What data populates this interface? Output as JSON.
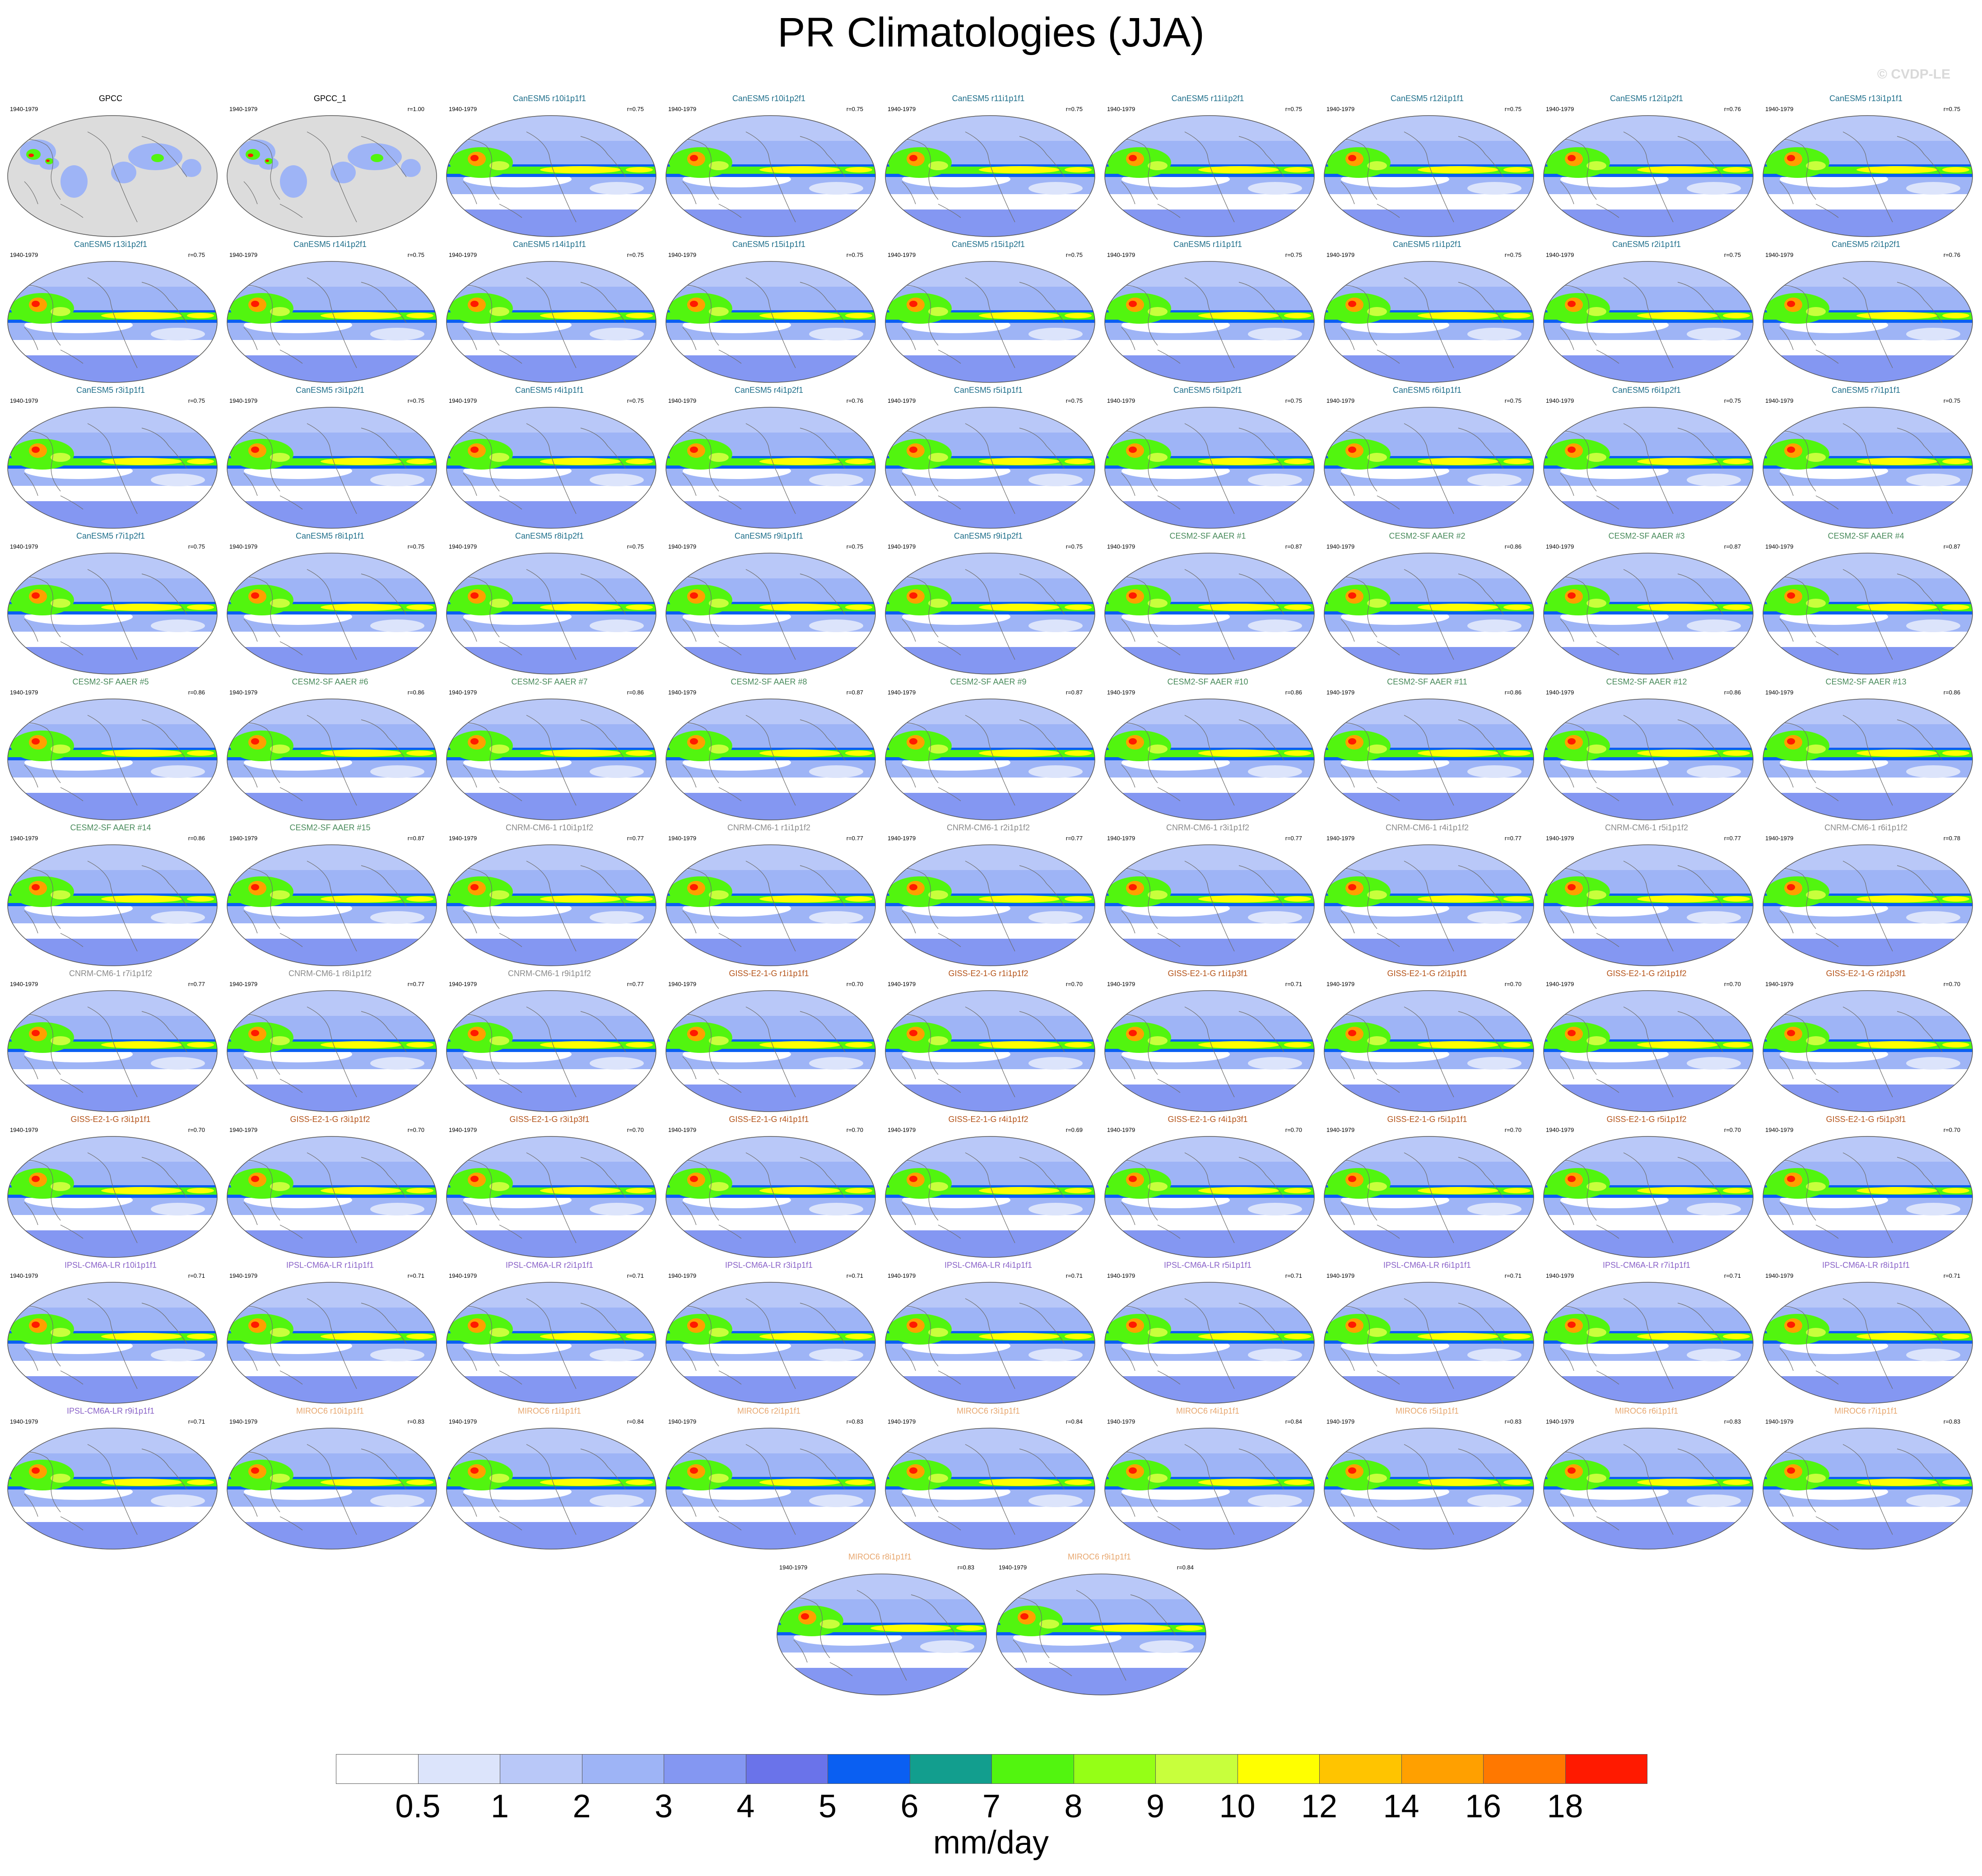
{
  "title": "PR Climatologies (JJA)",
  "watermark": "© CVDP-LE",
  "chart_data": {
    "type": "heatmap",
    "title": "PR Climatologies (JJA)",
    "period": "1940-1979",
    "units": "mm/day",
    "colorbar": {
      "labels": [
        "0.5",
        "1",
        "2",
        "3",
        "4",
        "5",
        "6",
        "7",
        "8",
        "9",
        "10",
        "12",
        "14",
        "16",
        "18"
      ],
      "colors": [
        "#ffffff",
        "#dce4fb",
        "#b9c8f8",
        "#9eb4f6",
        "#8497f2",
        "#6a73ea",
        "#0a5ff2",
        "#129e8e",
        "#52f50f",
        "#95ff16",
        "#c8ff3c",
        "#ffff00",
        "#ffc400",
        "#ffa000",
        "#ff7800",
        "#ff1a00"
      ]
    },
    "model_colors": {
      "obs": "#000000",
      "CanESM5": "#1f6f8b",
      "CESM2-SF AAER": "#4a8b5c",
      "CNRM-CM6-1": "#8a8a8a",
      "GISS-E2-1-G": "#b5541a",
      "IPSL-CM6A-LR": "#8a63c8",
      "MIROC6": "#e8a870"
    },
    "panels": [
      {
        "name": "GPCC",
        "model": "obs",
        "years": "1940-1979",
        "r": ""
      },
      {
        "name": "GPCC_1",
        "model": "obs",
        "years": "1940-1979",
        "r": "r=1.00"
      },
      {
        "name": "CanESM5 r10i1p1f1",
        "model": "CanESM5",
        "years": "1940-1979",
        "r": "r=0.75"
      },
      {
        "name": "CanESM5 r10i1p2f1",
        "model": "CanESM5",
        "years": "1940-1979",
        "r": "r=0.75"
      },
      {
        "name": "CanESM5 r11i1p1f1",
        "model": "CanESM5",
        "years": "1940-1979",
        "r": "r=0.75"
      },
      {
        "name": "CanESM5 r11i1p2f1",
        "model": "CanESM5",
        "years": "1940-1979",
        "r": "r=0.75"
      },
      {
        "name": "CanESM5 r12i1p1f1",
        "model": "CanESM5",
        "years": "1940-1979",
        "r": "r=0.75"
      },
      {
        "name": "CanESM5 r12i1p2f1",
        "model": "CanESM5",
        "years": "1940-1979",
        "r": "r=0.76"
      },
      {
        "name": "CanESM5 r13i1p1f1",
        "model": "CanESM5",
        "years": "1940-1979",
        "r": "r=0.75"
      },
      {
        "name": "CanESM5 r13i1p2f1",
        "model": "CanESM5",
        "years": "1940-1979",
        "r": "r=0.75"
      },
      {
        "name": "CanESM5 r14i1p2f1",
        "model": "CanESM5",
        "years": "1940-1979",
        "r": "r=0.75"
      },
      {
        "name": "CanESM5 r14i1p1f1",
        "model": "CanESM5",
        "years": "1940-1979",
        "r": "r=0.75"
      },
      {
        "name": "CanESM5 r15i1p1f1",
        "model": "CanESM5",
        "years": "1940-1979",
        "r": "r=0.75"
      },
      {
        "name": "CanESM5 r15i1p2f1",
        "model": "CanESM5",
        "years": "1940-1979",
        "r": "r=0.75"
      },
      {
        "name": "CanESM5 r1i1p1f1",
        "model": "CanESM5",
        "years": "1940-1979",
        "r": "r=0.75"
      },
      {
        "name": "CanESM5 r1i1p2f1",
        "model": "CanESM5",
        "years": "1940-1979",
        "r": "r=0.75"
      },
      {
        "name": "CanESM5 r2i1p1f1",
        "model": "CanESM5",
        "years": "1940-1979",
        "r": "r=0.75"
      },
      {
        "name": "CanESM5 r2i1p2f1",
        "model": "CanESM5",
        "years": "1940-1979",
        "r": "r=0.76"
      },
      {
        "name": "CanESM5 r3i1p1f1",
        "model": "CanESM5",
        "years": "1940-1979",
        "r": "r=0.75"
      },
      {
        "name": "CanESM5 r3i1p2f1",
        "model": "CanESM5",
        "years": "1940-1979",
        "r": "r=0.75"
      },
      {
        "name": "CanESM5 r4i1p1f1",
        "model": "CanESM5",
        "years": "1940-1979",
        "r": "r=0.75"
      },
      {
        "name": "CanESM5 r4i1p2f1",
        "model": "CanESM5",
        "years": "1940-1979",
        "r": "r=0.76"
      },
      {
        "name": "CanESM5 r5i1p1f1",
        "model": "CanESM5",
        "years": "1940-1979",
        "r": "r=0.75"
      },
      {
        "name": "CanESM5 r5i1p2f1",
        "model": "CanESM5",
        "years": "1940-1979",
        "r": "r=0.75"
      },
      {
        "name": "CanESM5 r6i1p1f1",
        "model": "CanESM5",
        "years": "1940-1979",
        "r": "r=0.75"
      },
      {
        "name": "CanESM5 r6i1p2f1",
        "model": "CanESM5",
        "years": "1940-1979",
        "r": "r=0.75"
      },
      {
        "name": "CanESM5 r7i1p1f1",
        "model": "CanESM5",
        "years": "1940-1979",
        "r": "r=0.75"
      },
      {
        "name": "CanESM5 r7i1p2f1",
        "model": "CanESM5",
        "years": "1940-1979",
        "r": "r=0.75"
      },
      {
        "name": "CanESM5 r8i1p1f1",
        "model": "CanESM5",
        "years": "1940-1979",
        "r": "r=0.75"
      },
      {
        "name": "CanESM5 r8i1p2f1",
        "model": "CanESM5",
        "years": "1940-1979",
        "r": "r=0.75"
      },
      {
        "name": "CanESM5 r9i1p1f1",
        "model": "CanESM5",
        "years": "1940-1979",
        "r": "r=0.75"
      },
      {
        "name": "CanESM5 r9i1p2f1",
        "model": "CanESM5",
        "years": "1940-1979",
        "r": "r=0.75"
      },
      {
        "name": "CESM2-SF AAER #1",
        "model": "CESM2-SF AAER",
        "years": "1940-1979",
        "r": "r=0.87"
      },
      {
        "name": "CESM2-SF AAER #2",
        "model": "CESM2-SF AAER",
        "years": "1940-1979",
        "r": "r=0.86"
      },
      {
        "name": "CESM2-SF AAER #3",
        "model": "CESM2-SF AAER",
        "years": "1940-1979",
        "r": "r=0.87"
      },
      {
        "name": "CESM2-SF AAER #4",
        "model": "CESM2-SF AAER",
        "years": "1940-1979",
        "r": "r=0.87"
      },
      {
        "name": "CESM2-SF AAER #5",
        "model": "CESM2-SF AAER",
        "years": "1940-1979",
        "r": "r=0.86"
      },
      {
        "name": "CESM2-SF AAER #6",
        "model": "CESM2-SF AAER",
        "years": "1940-1979",
        "r": "r=0.86"
      },
      {
        "name": "CESM2-SF AAER #7",
        "model": "CESM2-SF AAER",
        "years": "1940-1979",
        "r": "r=0.86"
      },
      {
        "name": "CESM2-SF AAER #8",
        "model": "CESM2-SF AAER",
        "years": "1940-1979",
        "r": "r=0.87"
      },
      {
        "name": "CESM2-SF AAER #9",
        "model": "CESM2-SF AAER",
        "years": "1940-1979",
        "r": "r=0.87"
      },
      {
        "name": "CESM2-SF AAER #10",
        "model": "CESM2-SF AAER",
        "years": "1940-1979",
        "r": "r=0.86"
      },
      {
        "name": "CESM2-SF AAER #11",
        "model": "CESM2-SF AAER",
        "years": "1940-1979",
        "r": "r=0.86"
      },
      {
        "name": "CESM2-SF AAER #12",
        "model": "CESM2-SF AAER",
        "years": "1940-1979",
        "r": "r=0.86"
      },
      {
        "name": "CESM2-SF AAER #13",
        "model": "CESM2-SF AAER",
        "years": "1940-1979",
        "r": "r=0.86"
      },
      {
        "name": "CESM2-SF AAER #14",
        "model": "CESM2-SF AAER",
        "years": "1940-1979",
        "r": "r=0.86"
      },
      {
        "name": "CESM2-SF AAER #15",
        "model": "CESM2-SF AAER",
        "years": "1940-1979",
        "r": "r=0.87"
      },
      {
        "name": "CNRM-CM6-1 r10i1p1f2",
        "model": "CNRM-CM6-1",
        "years": "1940-1979",
        "r": "r=0.77"
      },
      {
        "name": "CNRM-CM6-1 r1i1p1f2",
        "model": "CNRM-CM6-1",
        "years": "1940-1979",
        "r": "r=0.77"
      },
      {
        "name": "CNRM-CM6-1 r2i1p1f2",
        "model": "CNRM-CM6-1",
        "years": "1940-1979",
        "r": "r=0.77"
      },
      {
        "name": "CNRM-CM6-1 r3i1p1f2",
        "model": "CNRM-CM6-1",
        "years": "1940-1979",
        "r": "r=0.77"
      },
      {
        "name": "CNRM-CM6-1 r4i1p1f2",
        "model": "CNRM-CM6-1",
        "years": "1940-1979",
        "r": "r=0.77"
      },
      {
        "name": "CNRM-CM6-1 r5i1p1f2",
        "model": "CNRM-CM6-1",
        "years": "1940-1979",
        "r": "r=0.77"
      },
      {
        "name": "CNRM-CM6-1 r6i1p1f2",
        "model": "CNRM-CM6-1",
        "years": "1940-1979",
        "r": "r=0.78"
      },
      {
        "name": "CNRM-CM6-1 r7i1p1f2",
        "model": "CNRM-CM6-1",
        "years": "1940-1979",
        "r": "r=0.77"
      },
      {
        "name": "CNRM-CM6-1 r8i1p1f2",
        "model": "CNRM-CM6-1",
        "years": "1940-1979",
        "r": "r=0.77"
      },
      {
        "name": "CNRM-CM6-1 r9i1p1f2",
        "model": "CNRM-CM6-1",
        "years": "1940-1979",
        "r": "r=0.77"
      },
      {
        "name": "GISS-E2-1-G r1i1p1f1",
        "model": "GISS-E2-1-G",
        "years": "1940-1979",
        "r": "r=0.70"
      },
      {
        "name": "GISS-E2-1-G r1i1p1f2",
        "model": "GISS-E2-1-G",
        "years": "1940-1979",
        "r": "r=0.70"
      },
      {
        "name": "GISS-E2-1-G r1i1p3f1",
        "model": "GISS-E2-1-G",
        "years": "1940-1979",
        "r": "r=0.71"
      },
      {
        "name": "GISS-E2-1-G r2i1p1f1",
        "model": "GISS-E2-1-G",
        "years": "1940-1979",
        "r": "r=0.70"
      },
      {
        "name": "GISS-E2-1-G r2i1p1f2",
        "model": "GISS-E2-1-G",
        "years": "1940-1979",
        "r": "r=0.70"
      },
      {
        "name": "GISS-E2-1-G r2i1p3f1",
        "model": "GISS-E2-1-G",
        "years": "1940-1979",
        "r": "r=0.70"
      },
      {
        "name": "GISS-E2-1-G r3i1p1f1",
        "model": "GISS-E2-1-G",
        "years": "1940-1979",
        "r": "r=0.70"
      },
      {
        "name": "GISS-E2-1-G r3i1p1f2",
        "model": "GISS-E2-1-G",
        "years": "1940-1979",
        "r": "r=0.70"
      },
      {
        "name": "GISS-E2-1-G r3i1p3f1",
        "model": "GISS-E2-1-G",
        "years": "1940-1979",
        "r": "r=0.70"
      },
      {
        "name": "GISS-E2-1-G r4i1p1f1",
        "model": "GISS-E2-1-G",
        "years": "1940-1979",
        "r": "r=0.70"
      },
      {
        "name": "GISS-E2-1-G r4i1p1f2",
        "model": "GISS-E2-1-G",
        "years": "1940-1979",
        "r": "r=0.69"
      },
      {
        "name": "GISS-E2-1-G r4i1p3f1",
        "model": "GISS-E2-1-G",
        "years": "1940-1979",
        "r": "r=0.70"
      },
      {
        "name": "GISS-E2-1-G r5i1p1f1",
        "model": "GISS-E2-1-G",
        "years": "1940-1979",
        "r": "r=0.70"
      },
      {
        "name": "GISS-E2-1-G r5i1p1f2",
        "model": "GISS-E2-1-G",
        "years": "1940-1979",
        "r": "r=0.70"
      },
      {
        "name": "GISS-E2-1-G r5i1p3f1",
        "model": "GISS-E2-1-G",
        "years": "1940-1979",
        "r": "r=0.70"
      },
      {
        "name": "IPSL-CM6A-LR r10i1p1f1",
        "model": "IPSL-CM6A-LR",
        "years": "1940-1979",
        "r": "r=0.71"
      },
      {
        "name": "IPSL-CM6A-LR r1i1p1f1",
        "model": "IPSL-CM6A-LR",
        "years": "1940-1979",
        "r": "r=0.71"
      },
      {
        "name": "IPSL-CM6A-LR r2i1p1f1",
        "model": "IPSL-CM6A-LR",
        "years": "1940-1979",
        "r": "r=0.71"
      },
      {
        "name": "IPSL-CM6A-LR r3i1p1f1",
        "model": "IPSL-CM6A-LR",
        "years": "1940-1979",
        "r": "r=0.71"
      },
      {
        "name": "IPSL-CM6A-LR r4i1p1f1",
        "model": "IPSL-CM6A-LR",
        "years": "1940-1979",
        "r": "r=0.71"
      },
      {
        "name": "IPSL-CM6A-LR r5i1p1f1",
        "model": "IPSL-CM6A-LR",
        "years": "1940-1979",
        "r": "r=0.71"
      },
      {
        "name": "IPSL-CM6A-LR r6i1p1f1",
        "model": "IPSL-CM6A-LR",
        "years": "1940-1979",
        "r": "r=0.71"
      },
      {
        "name": "IPSL-CM6A-LR r7i1p1f1",
        "model": "IPSL-CM6A-LR",
        "years": "1940-1979",
        "r": "r=0.71"
      },
      {
        "name": "IPSL-CM6A-LR r8i1p1f1",
        "model": "IPSL-CM6A-LR",
        "years": "1940-1979",
        "r": "r=0.71"
      },
      {
        "name": "IPSL-CM6A-LR r9i1p1f1",
        "model": "IPSL-CM6A-LR",
        "years": "1940-1979",
        "r": "r=0.71"
      },
      {
        "name": "MIROC6 r10i1p1f1",
        "model": "MIROC6",
        "years": "1940-1979",
        "r": "r=0.83"
      },
      {
        "name": "MIROC6 r1i1p1f1",
        "model": "MIROC6",
        "years": "1940-1979",
        "r": "r=0.84"
      },
      {
        "name": "MIROC6 r2i1p1f1",
        "model": "MIROC6",
        "years": "1940-1979",
        "r": "r=0.83"
      },
      {
        "name": "MIROC6 r3i1p1f1",
        "model": "MIROC6",
        "years": "1940-1979",
        "r": "r=0.84"
      },
      {
        "name": "MIROC6 r4i1p1f1",
        "model": "MIROC6",
        "years": "1940-1979",
        "r": "r=0.84"
      },
      {
        "name": "MIROC6 r5i1p1f1",
        "model": "MIROC6",
        "years": "1940-1979",
        "r": "r=0.83"
      },
      {
        "name": "MIROC6 r6i1p1f1",
        "model": "MIROC6",
        "years": "1940-1979",
        "r": "r=0.83"
      },
      {
        "name": "MIROC6 r7i1p1f1",
        "model": "MIROC6",
        "years": "1940-1979",
        "r": "r=0.83"
      },
      {
        "name": "MIROC6 r8i1p1f1",
        "model": "MIROC6",
        "years": "1940-1979",
        "r": "r=0.83"
      },
      {
        "name": "MIROC6 r9i1p1f1",
        "model": "MIROC6",
        "years": "1940-1979",
        "r": "r=0.84"
      }
    ]
  }
}
